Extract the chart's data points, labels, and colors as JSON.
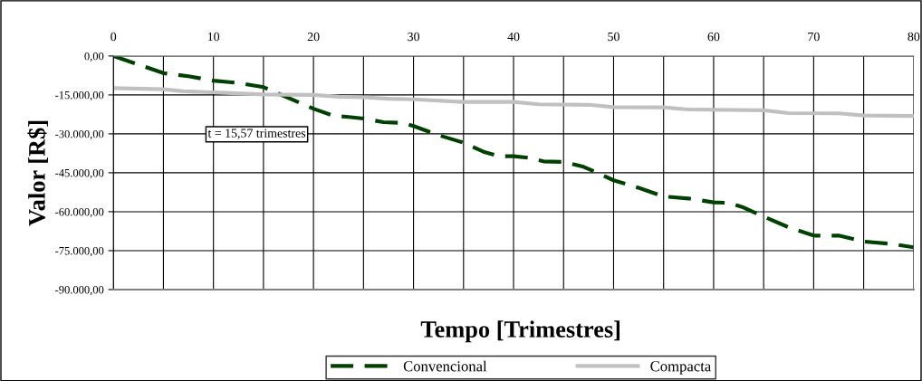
{
  "chart_data": {
    "type": "line",
    "xlabel": "Tempo [Trimestres]",
    "ylabel": "Valor [R$]",
    "annotations": [
      "t = 15,57 trimestres"
    ],
    "xlim": [
      0,
      80
    ],
    "ylim": [
      -90000,
      0
    ],
    "xticks": [
      0,
      {
        "value": 5,
        "label": null
      },
      10,
      {
        "value": 15,
        "label": null
      },
      20,
      {
        "value": 25,
        "label": null
      },
      30,
      {
        "value": 35,
        "label": null
      },
      40,
      {
        "value": 45,
        "label": null
      },
      50,
      {
        "value": 55,
        "label": null
      },
      60,
      {
        "value": 65,
        "label": null
      },
      70,
      {
        "value": 75,
        "label": null
      },
      80
    ],
    "yticks": [
      {
        "value": 0,
        "label": "0,00"
      },
      {
        "value": -15000,
        "label": "-15.000,00"
      },
      {
        "value": -30000,
        "label": "-30.000,00"
      },
      {
        "value": -45000,
        "label": "-45.000,00"
      },
      {
        "value": -60000,
        "label": "-60.000,00"
      },
      {
        "value": -75000,
        "label": "-75.000,00"
      },
      {
        "value": -90000,
        "label": "-90.000,00"
      }
    ],
    "grid": true,
    "legend": "bottom",
    "marker": "none",
    "series": [
      {
        "name": "Convencional",
        "color": "#004000",
        "line_style": "dashed",
        "x": [
          0,
          5,
          7.5,
          10,
          12.5,
          15,
          20,
          22,
          23.5,
          25,
          27,
          29,
          30,
          32.5,
          35,
          37,
          38.5,
          40,
          41.5,
          43,
          45,
          47,
          48,
          50,
          52.5,
          55,
          57.5,
          60,
          61.5,
          63,
          65,
          67.5,
          70,
          72.5,
          75,
          77.5,
          80
        ],
        "values": [
          0,
          -6600,
          -7800,
          -9500,
          -10400,
          -12000,
          -20300,
          -23000,
          -23500,
          -24100,
          -25500,
          -25800,
          -27000,
          -30500,
          -33400,
          -36900,
          -38600,
          -38600,
          -39200,
          -40600,
          -40800,
          -42700,
          -44400,
          -47900,
          -50800,
          -54100,
          -54900,
          -56400,
          -56600,
          -58400,
          -61900,
          -66000,
          -69200,
          -69200,
          -71500,
          -72300,
          -73700
        ]
      },
      {
        "name": "Compacta",
        "color": "#c0c0c0",
        "line_style": "solid",
        "x": [
          0,
          5,
          7,
          10,
          15,
          20,
          22.5,
          25,
          27.5,
          30,
          35,
          40,
          42.5,
          47.5,
          50,
          55,
          57.5,
          65,
          67.5,
          72.5,
          75,
          80
        ],
        "values": [
          -12400,
          -12800,
          -13600,
          -14000,
          -14800,
          -15000,
          -15700,
          -15900,
          -16500,
          -16700,
          -17700,
          -17700,
          -18600,
          -18800,
          -19700,
          -19800,
          -20600,
          -20900,
          -22000,
          -22100,
          -22900,
          -23100
        ]
      }
    ]
  }
}
